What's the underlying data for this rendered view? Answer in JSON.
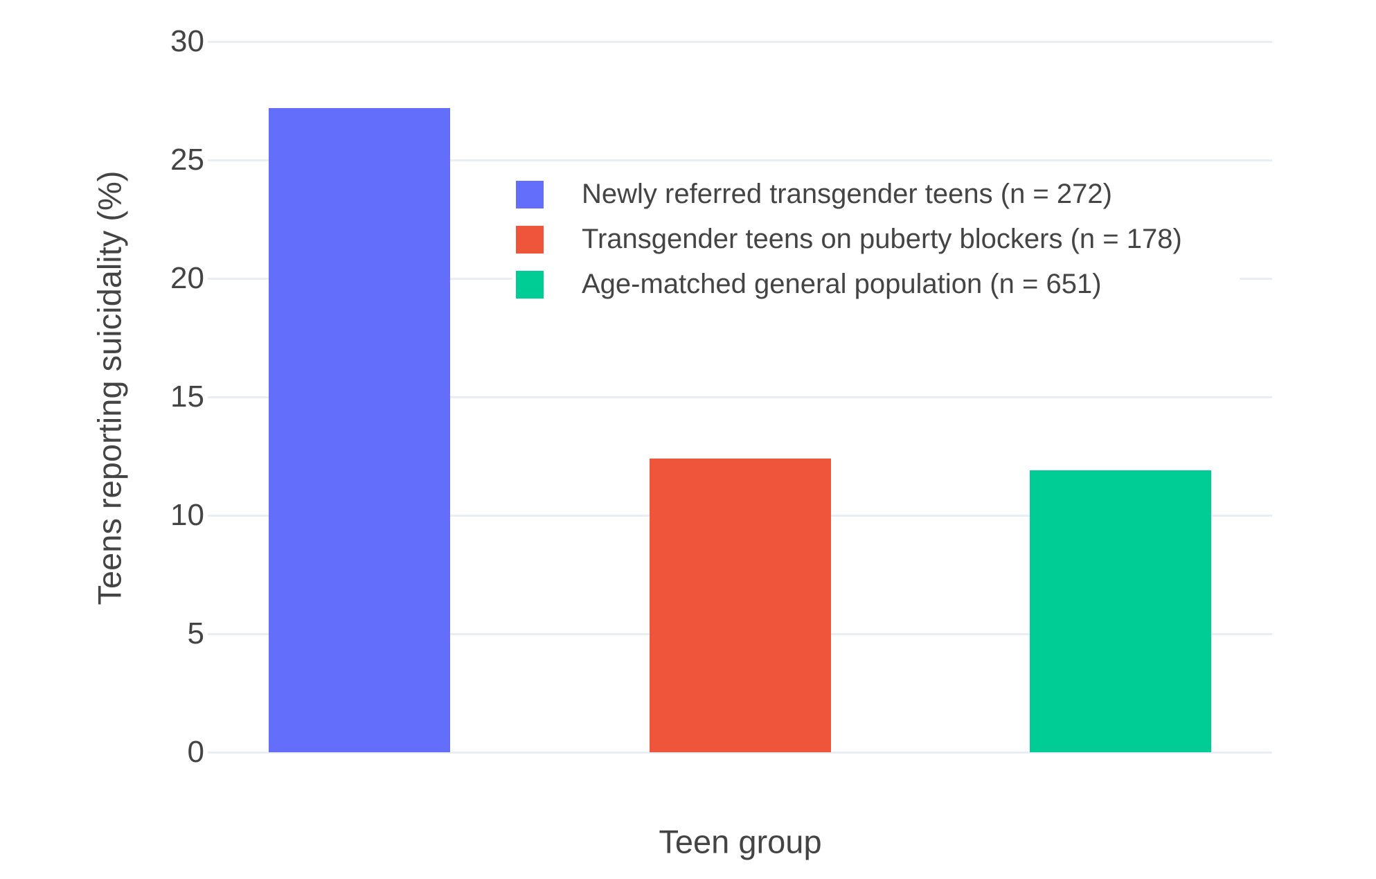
{
  "chart_data": {
    "type": "bar",
    "categories": [
      "Newly referred transgender teens (n = 272)",
      "Transgender teens on puberty blockers (n = 178)",
      "Age-matched general population (n = 651)"
    ],
    "values": [
      27.2,
      12.4,
      11.9
    ],
    "colors": [
      "#636efa",
      "#ef553b",
      "#00cc96"
    ],
    "title": "",
    "xlabel": "Teen group",
    "ylabel": "Teens reporting suicidality (%)",
    "ylim": [
      0,
      30
    ],
    "yticks": [
      0,
      5,
      10,
      15,
      20,
      25,
      30
    ],
    "grid": "horizontal",
    "gridline_color": "#e8edf6",
    "background_color": "#ffffff",
    "text_color": "#444444",
    "legend_position": "inside top, left of plot center",
    "x_tick_labels": []
  },
  "legend": {
    "items": [
      {
        "label": "Newly referred transgender teens (n = 272)",
        "color": "#636efa"
      },
      {
        "label": "Transgender teens on puberty blockers (n = 178)",
        "color": "#ef553b"
      },
      {
        "label": "Age-matched general population (n = 651)",
        "color": "#00cc96"
      }
    ]
  },
  "axes": {
    "x_title": "Teen group",
    "y_title": "Teens reporting suicidality (%)"
  }
}
